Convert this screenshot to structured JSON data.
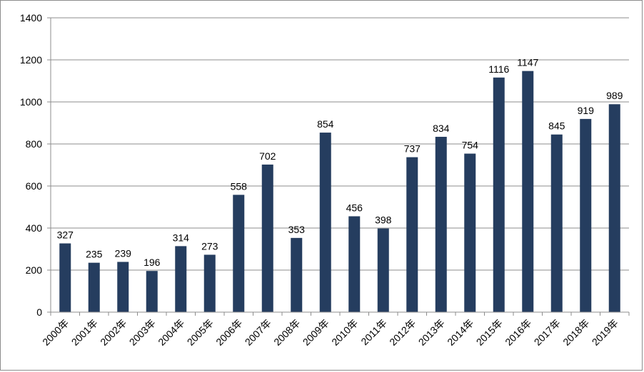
{
  "chart_data": {
    "type": "bar",
    "title": "",
    "xlabel": "",
    "ylabel": "",
    "categories": [
      "2000年",
      "2001年",
      "2002年",
      "2003年",
      "2004年",
      "2005年",
      "2006年",
      "2007年",
      "2008年",
      "2009年",
      "2010年",
      "2011年",
      "2012年",
      "2013年",
      "2014年",
      "2015年",
      "2016年",
      "2017年",
      "2018年",
      "2019年"
    ],
    "values": [
      327,
      235,
      239,
      196,
      314,
      273,
      558,
      702,
      353,
      854,
      456,
      398,
      737,
      834,
      754,
      1116,
      1147,
      845,
      919,
      989
    ],
    "ylim": [
      0,
      1400
    ],
    "yticks": [
      0,
      200,
      400,
      600,
      800,
      1000,
      1200,
      1400
    ],
    "grid": true,
    "legend": "none",
    "colors": {
      "bar": "#253d5f",
      "grid": "#8c8c8c",
      "text": "#000000"
    }
  }
}
